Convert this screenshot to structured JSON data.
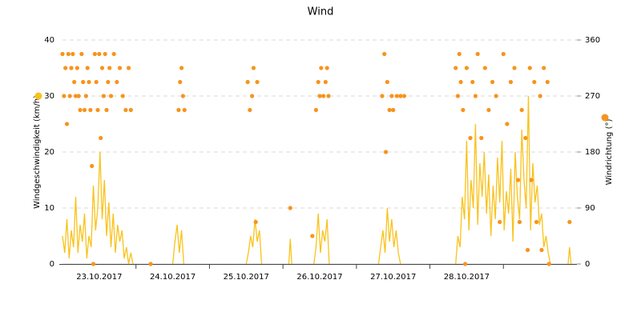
{
  "chart_data": {
    "type": "line",
    "title": "Wind",
    "ylabel": "Windgeschwindigkeit (km/h)",
    "y2label": "Windrichtung (°)",
    "xlim": [
      0,
      7
    ],
    "xticks": [
      {
        "value": 0.5,
        "label": "23.10.2017"
      },
      {
        "value": 1.5,
        "label": "24.10.2017"
      },
      {
        "value": 2.5,
        "label": "25.10.2017"
      },
      {
        "value": 3.5,
        "label": "26.10.2017"
      },
      {
        "value": 4.5,
        "label": "27.10.2017"
      },
      {
        "value": 5.5,
        "label": "28.10.2017"
      }
    ],
    "ylim": [
      0,
      40
    ],
    "yticks": [
      0,
      10,
      20,
      30,
      40
    ],
    "y2lim": [
      0,
      360
    ],
    "y2ticks": [
      0,
      90,
      180,
      270,
      360
    ],
    "grid": true,
    "series": [
      {
        "type": "line",
        "color": "#f9c21b",
        "x": [
          0,
          0.03,
          0.06,
          0.09,
          0.12,
          0.15,
          0.18,
          0.21,
          0.24,
          0.27,
          0.3,
          0.33,
          0.36,
          0.39,
          0.42,
          0.45,
          0.48,
          0.51,
          0.54,
          0.57,
          0.6,
          0.63,
          0.66,
          0.69,
          0.72,
          0.75,
          0.78,
          0.81,
          0.84,
          0.87,
          0.9,
          0.93,
          0.96,
          0.98,
          1.5,
          1.53,
          1.56,
          1.59,
          1.62,
          1.65,
          1.67,
          2.5,
          2.53,
          2.56,
          2.59,
          2.62,
          2.65,
          2.68,
          2.71,
          2.73,
          3.08,
          3.1,
          3.12,
          3.14,
          3.42,
          3.45,
          3.48,
          3.51,
          3.54,
          3.57,
          3.6,
          3.63,
          3.65,
          4.3,
          4.33,
          4.36,
          4.39,
          4.42,
          4.45,
          4.48,
          4.51,
          4.54,
          4.57,
          4.6,
          4.62,
          5.35,
          5.38,
          5.41,
          5.44,
          5.47,
          5.5,
          5.53,
          5.56,
          5.59,
          5.62,
          5.65,
          5.68,
          5.71,
          5.74,
          5.77,
          5.8,
          5.83,
          5.86,
          5.89,
          5.92,
          5.95,
          5.98,
          6.01,
          6.04,
          6.07,
          6.1,
          6.13,
          6.16,
          6.19,
          6.22,
          6.25,
          6.28,
          6.31,
          6.34,
          6.37,
          6.4,
          6.43,
          6.46,
          6.49,
          6.52,
          6.55,
          6.58,
          6.61,
          6.64,
          6.66,
          6.88,
          6.9,
          6.92
        ],
        "values": [
          5,
          2,
          8,
          1,
          6,
          3,
          12,
          2,
          7,
          4,
          9,
          1,
          5,
          3,
          14,
          6,
          10,
          20,
          8,
          15,
          5,
          11,
          3,
          9,
          2,
          7,
          4,
          6,
          1,
          3,
          0,
          2,
          0,
          null,
          0,
          4,
          7,
          2,
          6,
          0,
          null,
          0,
          2,
          5,
          3,
          8,
          4,
          6,
          0,
          null,
          0,
          4.5,
          0,
          null,
          0,
          3,
          9,
          2,
          6,
          4,
          8,
          0,
          null,
          0,
          3,
          6,
          2,
          10,
          4,
          8,
          3,
          6,
          2,
          0,
          null,
          0,
          5,
          3,
          12,
          8,
          22,
          6,
          15,
          10,
          25,
          7,
          18,
          12,
          20,
          9,
          16,
          5,
          14,
          8,
          19,
          11,
          22,
          6,
          13,
          9,
          17,
          4,
          20,
          12,
          8,
          24,
          15,
          10,
          30,
          6,
          18,
          11,
          14,
          7,
          9,
          3,
          5,
          2,
          0,
          null,
          0,
          3,
          0
        ]
      },
      {
        "type": "scatter",
        "axis": "y2",
        "color": "#f7941d",
        "x": [
          0,
          0.02,
          0.04,
          0.06,
          0.08,
          0.1,
          0.12,
          0.14,
          0.16,
          0.18,
          0.2,
          0.22,
          0.24,
          0.26,
          0.28,
          0.3,
          0.32,
          0.34,
          0.36,
          0.38,
          0.4,
          0.42,
          0.44,
          0.46,
          0.48,
          0.5,
          0.52,
          0.54,
          0.56,
          0.58,
          0.6,
          0.62,
          0.64,
          0.66,
          0.7,
          0.74,
          0.78,
          0.82,
          0.86,
          0.9,
          0.93,
          1.2,
          1.58,
          1.6,
          1.62,
          1.64,
          1.66,
          2.52,
          2.55,
          2.58,
          2.6,
          2.63,
          2.65,
          3.1,
          3.4,
          3.45,
          3.48,
          3.5,
          3.52,
          3.55,
          3.58,
          3.6,
          3.62,
          4.35,
          4.38,
          4.4,
          4.42,
          4.45,
          4.48,
          4.5,
          4.55,
          4.6,
          4.65,
          5.35,
          5.38,
          5.4,
          5.42,
          5.45,
          5.48,
          5.5,
          5.55,
          5.58,
          5.62,
          5.65,
          5.7,
          5.75,
          5.8,
          5.85,
          5.9,
          5.95,
          6.0,
          6.05,
          6.1,
          6.15,
          6.2,
          6.22,
          6.25,
          6.3,
          6.33,
          6.36,
          6.38,
          6.42,
          6.45,
          6.5,
          6.52,
          6.55,
          6.6,
          6.62,
          6.9
        ],
        "values": [
          337.5,
          270,
          315,
          225,
          337.5,
          270,
          315,
          337.5,
          292.5,
          270,
          315,
          270,
          247.5,
          337.5,
          292.5,
          247.5,
          270,
          315,
          292.5,
          247.5,
          157.5,
          0,
          337.5,
          292.5,
          247.5,
          337.5,
          202.5,
          315,
          270,
          337.5,
          247.5,
          292.5,
          315,
          270,
          337.5,
          292.5,
          315,
          270,
          247.5,
          315,
          247.5,
          0,
          247.5,
          292.5,
          315,
          270,
          247.5,
          292.5,
          247.5,
          270,
          315,
          67.5,
          292.5,
          90,
          45,
          247.5,
          292.5,
          270,
          315,
          270,
          292.5,
          315,
          270,
          270,
          337.5,
          180,
          292.5,
          247.5,
          270,
          247.5,
          270,
          270,
          270,
          315,
          270,
          337.5,
          292.5,
          247.5,
          0,
          315,
          202.5,
          292.5,
          270,
          337.5,
          202.5,
          315,
          247.5,
          292.5,
          270,
          67.5,
          337.5,
          225,
          292.5,
          315,
          135,
          67.5,
          247.5,
          202.5,
          22.5,
          315,
          135,
          292.5,
          67.5,
          270,
          22.5,
          315,
          292.5,
          0,
          67.5
        ]
      }
    ]
  }
}
